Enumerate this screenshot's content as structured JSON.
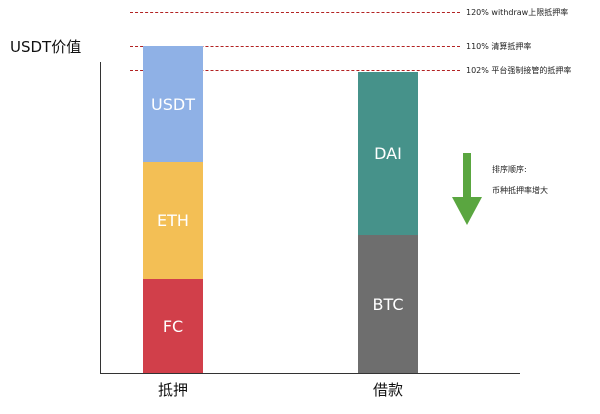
{
  "y_axis_title": "USDT价值",
  "reference_lines": {
    "withdraw": "120% withdraw上限抵押率",
    "liquidation": "110% 清算抵押率",
    "forced_takeover": "102% 平台强制接管的抵押率"
  },
  "collateral": {
    "category": "抵押",
    "segments": [
      "USDT",
      "ETH",
      "FC"
    ],
    "colors": [
      "#8fb1e6",
      "#f3bf55",
      "#d13f4a"
    ]
  },
  "borrow": {
    "category": "借款",
    "segments": [
      "DAI",
      "BTC"
    ],
    "colors": [
      "#46928a",
      "#6e6e6e"
    ]
  },
  "sort_note": {
    "line1": "排序顺序:",
    "line2": "币种抵押率增大"
  },
  "arrow_color": "#5aa640"
}
